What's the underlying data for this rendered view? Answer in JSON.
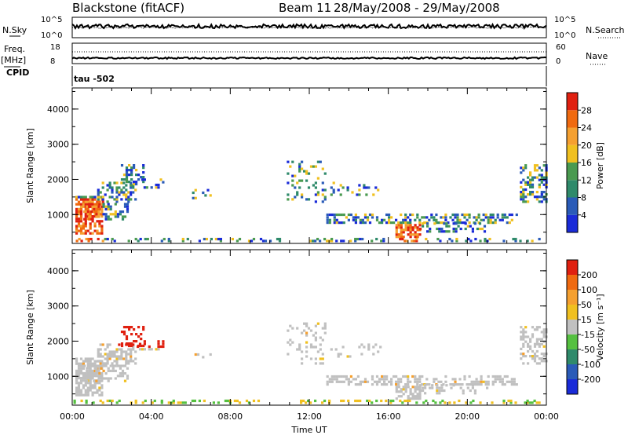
{
  "header": {
    "title": "Blackstone (fitACF)",
    "beam": "Beam 11",
    "dates": "28/May/2008 - 29/May/2008"
  },
  "side_labels": {
    "nsky": "N.Sky",
    "nsearch": "N.Search",
    "freq": "Freq.",
    "freq_unit": "[MHz]",
    "cpid": "CPID",
    "nave": "Nave",
    "tau": "tau  -502",
    "nsky_ticks": [
      "10^5",
      "10^0"
    ],
    "nsearch_ticks": [
      "10^5",
      "10^0"
    ],
    "freq_ticks": [
      "18",
      "8"
    ],
    "nave_ticks": [
      "60",
      "0"
    ]
  },
  "chart_data": [
    {
      "type": "heatmap",
      "panel": "power",
      "ylabel": "Slant Range [km]",
      "xlabel": "",
      "x_ticks": [
        "00:00",
        "04:00",
        "08:00",
        "12:00",
        "16:00",
        "20:00",
        "00:00"
      ],
      "y_ticks": [
        1000,
        2000,
        3000,
        4000
      ],
      "xlim_hours": [
        0,
        24
      ],
      "ylim_km": [
        180,
        4600
      ],
      "colorbar": {
        "label": "Power [dB]",
        "ticks": [
          "4",
          "8",
          "12",
          "16",
          "20",
          "24",
          "28"
        ],
        "colors": [
          "#1a2bd8",
          "#2a5bb8",
          "#2f8a6b",
          "#4a9a50",
          "#f0c020",
          "#f5a030",
          "#f06a10",
          "#e02010"
        ]
      }
    },
    {
      "type": "heatmap",
      "panel": "velocity",
      "ylabel": "Slant Range [km]",
      "xlabel": "Time UT",
      "x_ticks": [
        "00:00",
        "04:00",
        "08:00",
        "12:00",
        "16:00",
        "20:00",
        "00:00"
      ],
      "y_ticks": [
        1000,
        2000,
        3000,
        4000
      ],
      "xlim_hours": [
        0,
        24
      ],
      "ylim_km": [
        180,
        4600
      ],
      "colorbar": {
        "label": "Velocity [m s⁻¹]",
        "ticks": [
          "200",
          "100",
          "50",
          "15",
          "-15",
          "-50",
          "-100",
          "-200"
        ],
        "colors": [
          "#1a2bd8",
          "#2a5bb8",
          "#2f8a6b",
          "#55c040",
          "#c0c0c0",
          "#f0c020",
          "#f5a030",
          "#f06a10",
          "#e02010"
        ]
      }
    }
  ]
}
